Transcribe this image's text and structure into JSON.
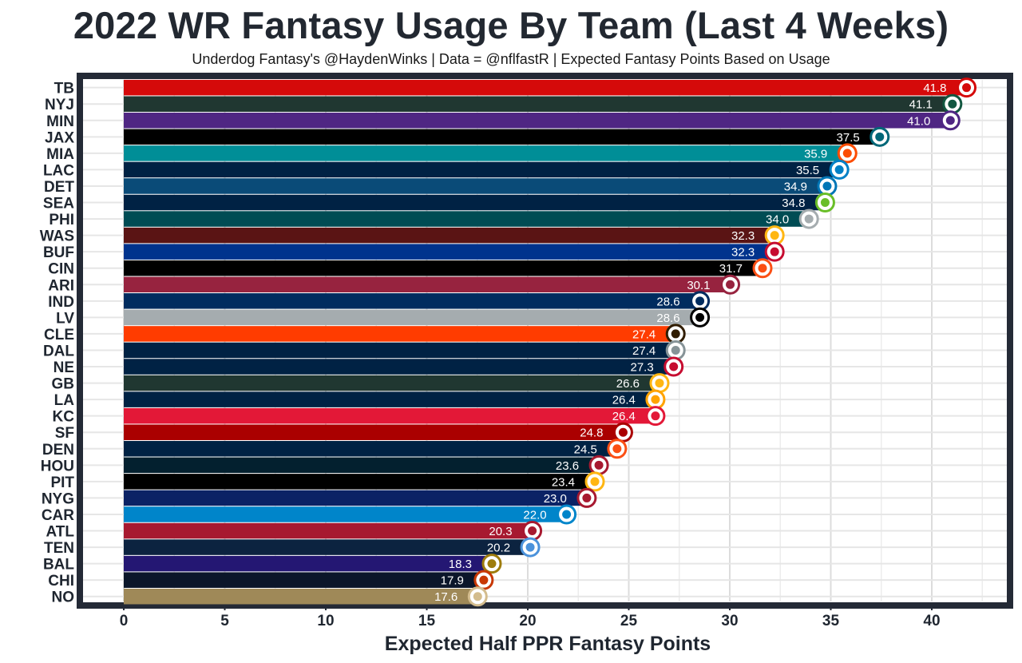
{
  "chart_data": {
    "type": "bar",
    "orientation": "horizontal",
    "title": "2022 WR Fantasy Usage By Team (Last 4 Weeks)",
    "subtitle": "Underdog Fantasy's @HaydenWinks | Data = @nflfastR | Expected Fantasy Points Based on Usage",
    "xlabel": "Expected Half PPR Fantasy Points",
    "ylabel": "",
    "xlim": [
      0,
      43
    ],
    "xticks": [
      "0",
      "5",
      "10",
      "15",
      "20",
      "25",
      "30",
      "35",
      "40"
    ],
    "grid": true,
    "legend": "none",
    "categories": [
      "TB",
      "NYJ",
      "MIN",
      "JAX",
      "MIA",
      "LAC",
      "DET",
      "SEA",
      "PHI",
      "WAS",
      "BUF",
      "CIN",
      "ARI",
      "IND",
      "LV",
      "CLE",
      "DAL",
      "NE",
      "GB",
      "LA",
      "KC",
      "SF",
      "DEN",
      "HOU",
      "PIT",
      "NYG",
      "CAR",
      "ATL",
      "TEN",
      "BAL",
      "CHI",
      "NO"
    ],
    "values": [
      41.8,
      41.1,
      41.0,
      37.5,
      35.9,
      35.5,
      34.9,
      34.8,
      34.0,
      32.3,
      32.3,
      31.7,
      30.1,
      28.6,
      28.6,
      27.4,
      27.4,
      27.3,
      26.6,
      26.4,
      26.4,
      24.8,
      24.5,
      23.6,
      23.4,
      23.0,
      22.0,
      20.3,
      20.2,
      18.3,
      17.9,
      17.6
    ],
    "value_labels": [
      "41.8",
      "41.1",
      "41.0",
      "37.5",
      "35.9",
      "35.5",
      "34.9",
      "34.8",
      "34.0",
      "32.3",
      "32.3",
      "31.7",
      "30.1",
      "28.6",
      "28.6",
      "27.4",
      "27.4",
      "27.3",
      "26.6",
      "26.4",
      "26.4",
      "24.8",
      "24.5",
      "23.6",
      "23.4",
      "23.0",
      "22.0",
      "20.3",
      "20.2",
      "18.3",
      "17.9",
      "17.6"
    ],
    "colors": [
      "#D50A0A",
      "#203731",
      "#4F2683",
      "#000000",
      "#008E97",
      "#002244",
      "#0A4B78",
      "#002244",
      "#004C54",
      "#5A1414",
      "#00338D",
      "#000000",
      "#97233F",
      "#002C5F",
      "#A5ACAF",
      "#FF3C00",
      "#002244",
      "#002244",
      "#203731",
      "#002244",
      "#E31837",
      "#AA0000",
      "#002244",
      "#03202F",
      "#000000",
      "#0B2265",
      "#0085CA",
      "#A71930",
      "#0C2340",
      "#241773",
      "#0B162A",
      "#9F8958"
    ],
    "logo_colors": [
      "#D50A0A",
      "#125740",
      "#4F2683",
      "#006778",
      "#FC4C02",
      "#0080C6",
      "#0076B6",
      "#69BE28",
      "#A5ACAF",
      "#FFB612",
      "#C60C30",
      "#FB4F14",
      "#97233F",
      "#002C5F",
      "#000000",
      "#311D00",
      "#869397",
      "#C60C30",
      "#FFB612",
      "#FFA300",
      "#E31837",
      "#AA0000",
      "#FB4F14",
      "#A71930",
      "#FFB612",
      "#A71930",
      "#0085CA",
      "#A71930",
      "#4B92DB",
      "#9E7C0C",
      "#C83803",
      "#D3BC8D"
    ]
  }
}
